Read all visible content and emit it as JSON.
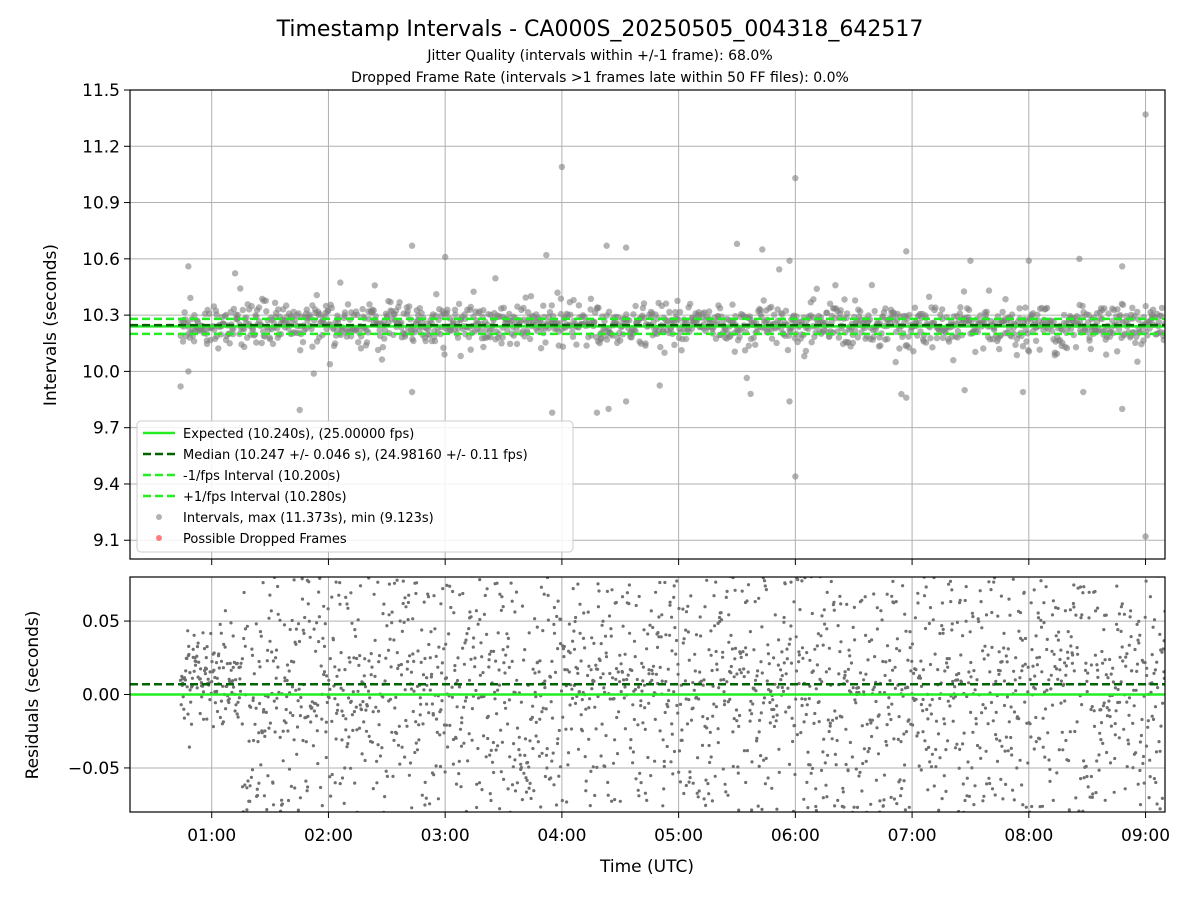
{
  "title": "Timestamp Intervals - CA000S_20250505_004318_642517",
  "subtitle_1": "Jitter Quality (intervals within +/-1 frame): 68.0%",
  "subtitle_2": "Dropped Frame Rate (intervals >1 frames late within 50 FF files): 0.0%",
  "chart_data": [
    {
      "type": "scatter",
      "panel": "intervals",
      "ylabel": "Intervals (seconds)",
      "ylim": [
        9.0,
        11.5
      ],
      "xlim": [
        "00:18",
        "09:10"
      ],
      "yticks": [
        9.1,
        9.4,
        9.7,
        10.0,
        10.3,
        10.6,
        10.9,
        11.2,
        11.5
      ],
      "ytick_labels": [
        "9.1",
        "9.4",
        "9.7",
        "10.0",
        "10.3",
        "10.6",
        "10.9",
        "11.2",
        "11.5"
      ],
      "grid": true,
      "legend_position": "lower-left",
      "legend": [
        "Expected (10.240s), (25.00000 fps)",
        "Median (10.247 +/- 0.046 s), (24.98160 +/- 0.11 fps)",
        "-1/fps Interval (10.200s)",
        "+1/fps Interval (10.280s)",
        "Intervals, max (11.373s), min (9.123s)",
        "Possible Dropped Frames"
      ],
      "reference_lines": [
        {
          "label": "Expected",
          "y": 10.24,
          "color": "#22ee22",
          "style": "solid"
        },
        {
          "label": "Median",
          "y": 10.247,
          "color": "#006400",
          "style": "dashed"
        },
        {
          "label": "-1/fps",
          "y": 10.2,
          "color": "#22ee22",
          "style": "dashed"
        },
        {
          "label": "+1/fps",
          "y": 10.28,
          "color": "#22ee22",
          "style": "dashed"
        }
      ],
      "series_summary": {
        "time_start": "00:44",
        "time_end": "09:10",
        "count_approx": 2950,
        "center": 10.247,
        "spread_sd": 0.046,
        "max": 11.373,
        "min": 9.123
      },
      "outliers": [
        {
          "x": "00:44",
          "y": 9.92
        },
        {
          "x": "00:48",
          "y": 10.56
        },
        {
          "x": "00:48",
          "y": 10.0
        },
        {
          "x": "02:43",
          "y": 10.67
        },
        {
          "x": "02:43",
          "y": 9.89
        },
        {
          "x": "03:00",
          "y": 10.61
        },
        {
          "x": "03:52",
          "y": 10.62
        },
        {
          "x": "03:55",
          "y": 9.78
        },
        {
          "x": "04:00",
          "y": 11.09
        },
        {
          "x": "04:18",
          "y": 9.78
        },
        {
          "x": "04:23",
          "y": 10.67
        },
        {
          "x": "04:24",
          "y": 9.8
        },
        {
          "x": "04:33",
          "y": 10.66
        },
        {
          "x": "04:33",
          "y": 9.84
        },
        {
          "x": "05:30",
          "y": 10.68
        },
        {
          "x": "05:37",
          "y": 9.88
        },
        {
          "x": "05:43",
          "y": 10.65
        },
        {
          "x": "05:57",
          "y": 10.59
        },
        {
          "x": "05:57",
          "y": 9.84
        },
        {
          "x": "06:00",
          "y": 11.03
        },
        {
          "x": "06:00",
          "y": 9.44
        },
        {
          "x": "06:57",
          "y": 10.64
        },
        {
          "x": "06:57",
          "y": 9.86
        },
        {
          "x": "07:30",
          "y": 10.59
        },
        {
          "x": "07:27",
          "y": 9.9
        },
        {
          "x": "08:00",
          "y": 10.59
        },
        {
          "x": "07:57",
          "y": 9.89
        },
        {
          "x": "08:26",
          "y": 10.6
        },
        {
          "x": "08:28",
          "y": 9.89
        },
        {
          "x": "08:48",
          "y": 10.56
        },
        {
          "x": "08:48",
          "y": 9.8
        },
        {
          "x": "09:00",
          "y": 11.37
        },
        {
          "x": "09:00",
          "y": 9.12
        }
      ]
    },
    {
      "type": "scatter",
      "panel": "residuals",
      "ylabel": "Residuals (seconds)",
      "xlabel": "Time (UTC)",
      "ylim": [
        -0.08,
        0.08
      ],
      "yticks": [
        -0.05,
        0.0,
        0.05
      ],
      "ytick_labels": [
        "−0.05",
        "0.00",
        "0.05"
      ],
      "xticks": [
        "01:00",
        "02:00",
        "03:00",
        "04:00",
        "05:00",
        "06:00",
        "07:00",
        "08:00",
        "09:00"
      ],
      "grid": true,
      "reference_lines": [
        {
          "label": "zero",
          "y": 0.0,
          "color": "#22ee22",
          "style": "solid"
        },
        {
          "label": "median offset",
          "y": 0.007,
          "color": "#006400",
          "style": "dashed"
        }
      ],
      "series_summary": {
        "time_start": "00:44",
        "time_end": "09:10",
        "count_approx": 2950,
        "spread": "uniform-like within about -0.08 to 0.08, denser near 0 in first hour"
      }
    }
  ],
  "colors": {
    "intervals": "#808080",
    "dropped": "#ff4444",
    "expected": "#22ee22",
    "median": "#006400",
    "grid": "#b0b0b0"
  }
}
